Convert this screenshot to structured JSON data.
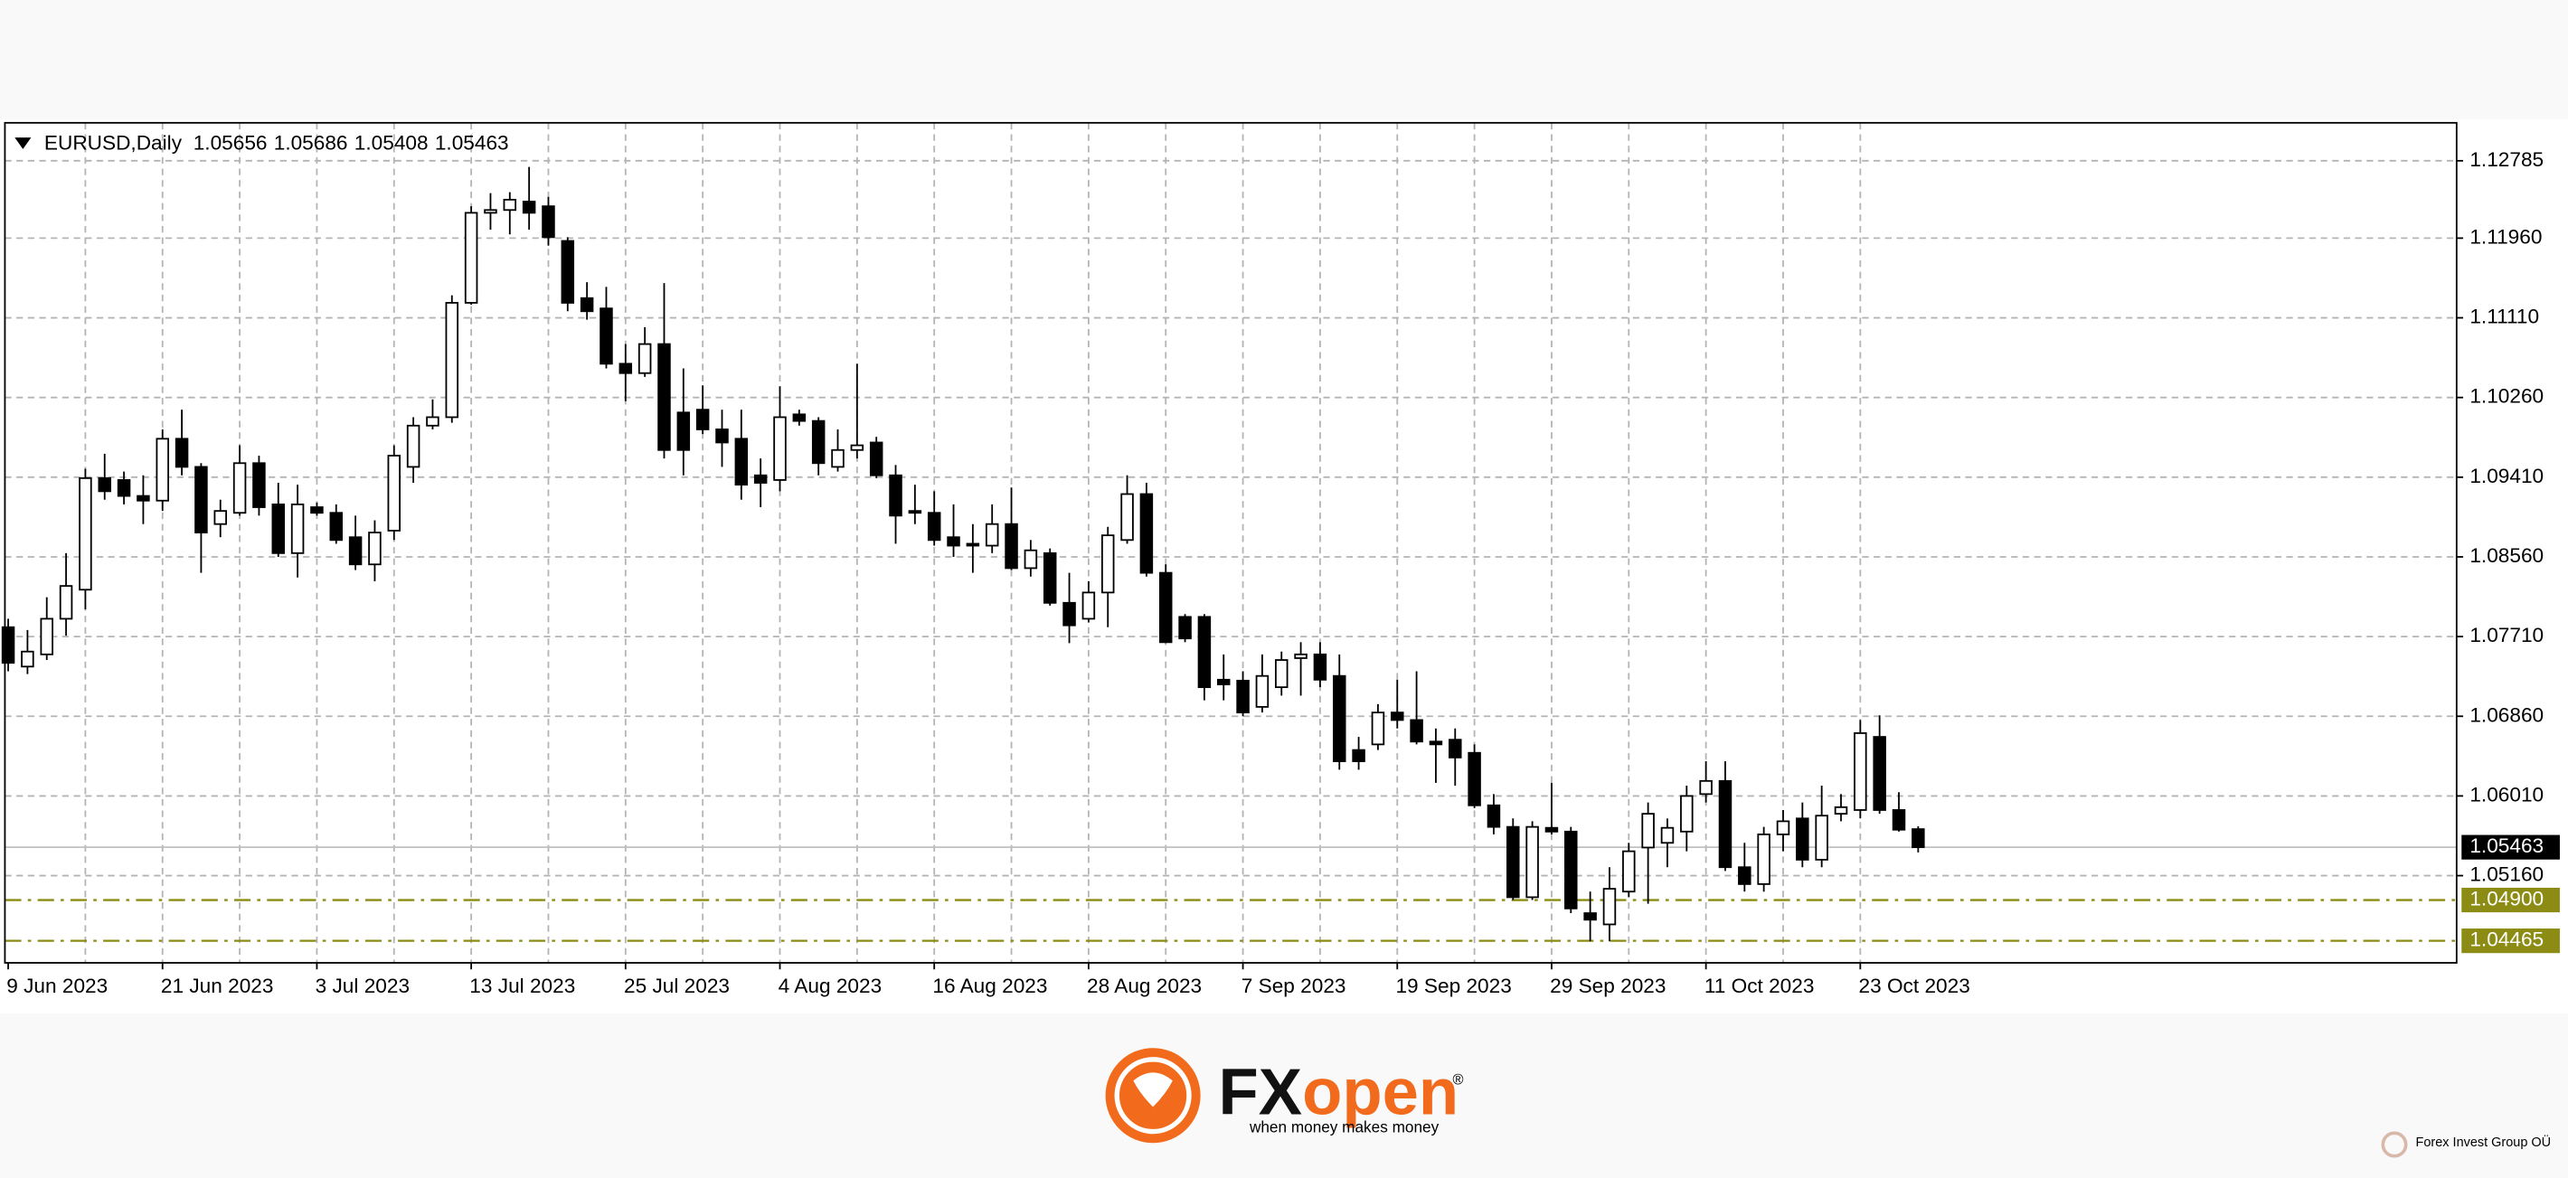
{
  "chart_data": {
    "type": "candlestick",
    "symbol": "EURUSD,Daily",
    "categories": [
      "9 Jun 2023",
      null,
      null,
      null,
      null,
      null,
      null,
      null,
      "21 Jun 2023",
      null,
      null,
      null,
      null,
      null,
      null,
      null,
      "3 Jul 2023",
      null,
      null,
      null,
      null,
      null,
      null,
      null,
      "13 Jul 2023",
      null,
      null,
      null,
      null,
      null,
      null,
      null,
      "25 Jul 2023",
      null,
      null,
      null,
      null,
      null,
      null,
      null,
      "4 Aug 2023",
      null,
      null,
      null,
      null,
      null,
      null,
      null,
      "16 Aug 2023",
      null,
      null,
      null,
      null,
      null,
      null,
      null,
      "28 Aug 2023",
      null,
      null,
      null,
      null,
      null,
      null,
      null,
      "7 Sep 2023",
      null,
      null,
      null,
      null,
      null,
      null,
      null,
      "19 Sep 2023",
      null,
      null,
      null,
      null,
      null,
      null,
      null,
      "29 Sep 2023",
      null,
      null,
      null,
      null,
      null,
      null,
      null,
      "11 Oct 2023",
      null,
      null,
      null,
      null,
      null,
      null,
      null,
      "23 Oct 2023",
      null,
      null,
      null
    ],
    "open": [
      1.0781,
      1.0739,
      1.0752,
      1.079,
      1.0821,
      1.094,
      1.0938,
      1.0921,
      1.0916,
      1.0982,
      1.0952,
      1.0891,
      1.0903,
      1.0956,
      1.0912,
      1.086,
      1.0909,
      1.0903,
      1.0877,
      1.0848,
      1.0884,
      1.0952,
      1.0996,
      1.1005,
      1.1127,
      1.1223,
      1.1226,
      1.1235,
      1.123,
      1.1193,
      1.1132,
      1.1121,
      1.1062,
      1.1052,
      1.1083,
      1.101,
      1.1013,
      1.0992,
      1.0982,
      1.0943,
      1.0938,
      1.1008,
      1.1001,
      1.0952,
      1.097,
      1.0978,
      1.0943,
      1.0905,
      1.0903,
      1.0877,
      1.087,
      1.0868,
      1.0891,
      1.0844,
      1.086,
      1.0807,
      1.079,
      1.0818,
      1.0874,
      1.0923,
      1.0839,
      1.0792,
      1.0792,
      1.0725,
      1.0724,
      1.0696,
      1.0717,
      1.0748,
      1.0752,
      1.0729,
      1.065,
      1.0656,
      1.069,
      1.0682,
      1.0659,
      1.0661,
      1.0647,
      1.0591,
      1.0568,
      1.0493,
      1.0567,
      1.0563,
      1.0476,
      1.0464,
      1.0499,
      1.0546,
      1.0551,
      1.0563,
      1.0603,
      1.0617,
      1.0525,
      1.0507,
      1.056,
      1.0577,
      1.0533,
      1.0582,
      1.0586,
      1.0664,
      1.0586,
      1.05656
    ],
    "high": [
      1.079,
      1.0778,
      1.0813,
      1.086,
      1.095,
      1.0966,
      1.0947,
      1.0943,
      1.0992,
      1.1013,
      1.0956,
      1.0917,
      1.0975,
      1.0964,
      1.0935,
      1.0933,
      1.0914,
      1.0912,
      1.09,
      1.0895,
      1.0975,
      1.1005,
      1.1024,
      1.1135,
      1.123,
      1.1244,
      1.1245,
      1.1272,
      1.124,
      1.1197,
      1.1149,
      1.1144,
      1.1083,
      1.1101,
      1.1148,
      1.1057,
      1.1039,
      1.1013,
      1.1013,
      1.0961,
      1.1038,
      1.1013,
      1.1005,
      1.0992,
      1.1062,
      1.0984,
      1.0954,
      1.0933,
      1.0926,
      1.0912,
      1.0891,
      1.0912,
      1.093,
      1.0874,
      1.0865,
      1.0839,
      1.083,
      1.0888,
      1.0943,
      1.0935,
      1.0848,
      1.0795,
      1.0795,
      1.0752,
      1.0734,
      1.0752,
      1.0755,
      1.0765,
      1.0765,
      1.0752,
      1.0664,
      1.0699,
      1.0725,
      1.0734,
      1.0673,
      1.0673,
      1.0656,
      1.0603,
      1.0577,
      1.0574,
      1.0615,
      1.0568,
      1.0499,
      1.0525,
      1.0551,
      1.0594,
      1.0577,
      1.0612,
      1.0638,
      1.0638,
      1.0551,
      1.0568,
      1.0586,
      1.0594,
      1.0612,
      1.0603,
      1.0682,
      1.0687,
      1.0605,
      1.05686
    ],
    "low": [
      1.0734,
      1.0731,
      1.0746,
      1.0772,
      1.08,
      1.0917,
      1.0912,
      1.0891,
      1.0905,
      1.0943,
      1.0839,
      1.0877,
      1.09,
      1.09,
      1.0856,
      1.0834,
      1.09,
      1.087,
      1.0842,
      1.083,
      1.0874,
      1.0935,
      1.0992,
      1.0999,
      1.1125,
      1.1205,
      1.12,
      1.1205,
      1.1188,
      1.1118,
      1.1109,
      1.1057,
      1.1022,
      1.1048,
      1.0961,
      1.0943,
      1.0987,
      1.0952,
      1.0917,
      1.0909,
      1.0926,
      1.0996,
      1.0943,
      1.0947,
      1.0961,
      1.094,
      1.087,
      1.0891,
      1.0868,
      1.0856,
      1.0839,
      1.086,
      1.0842,
      1.0835,
      1.0804,
      1.0764,
      1.0786,
      1.0781,
      1.087,
      1.0835,
      1.0764,
      1.0765,
      1.0703,
      1.0703,
      1.0686,
      1.069,
      1.0708,
      1.0708,
      1.0717,
      1.0629,
      1.0629,
      1.065,
      1.0673,
      1.0656,
      1.0615,
      1.0612,
      1.0588,
      1.056,
      1.049,
      1.049,
      1.056,
      1.0476,
      1.0446,
      1.0446,
      1.0493,
      1.0486,
      1.0525,
      1.0542,
      1.0594,
      1.0521,
      1.0499,
      1.0499,
      1.0542,
      1.0525,
      1.0525,
      1.0574,
      1.0577,
      1.0582,
      1.0563,
      1.05408
    ],
    "close": [
      1.0743,
      1.0755,
      1.079,
      1.0825,
      1.094,
      1.0926,
      1.0921,
      1.0916,
      1.0982,
      1.0952,
      1.0882,
      1.0905,
      1.0956,
      1.0909,
      1.086,
      1.0912,
      1.0903,
      1.0874,
      1.0848,
      1.0882,
      1.0964,
      1.0996,
      1.1005,
      1.1127,
      1.1223,
      1.1226,
      1.1237,
      1.1223,
      1.1197,
      1.1127,
      1.1118,
      1.1062,
      1.1052,
      1.1083,
      1.097,
      1.097,
      1.0992,
      1.0978,
      1.0933,
      1.0935,
      1.1005,
      1.1001,
      1.0956,
      1.097,
      1.0975,
      1.0943,
      1.09,
      1.0903,
      1.0874,
      1.0868,
      1.0868,
      1.0891,
      1.0844,
      1.0863,
      1.0807,
      1.0783,
      1.0818,
      1.0879,
      1.0923,
      1.0839,
      1.0765,
      1.0769,
      1.0717,
      1.072,
      1.069,
      1.0729,
      1.0746,
      1.0752,
      1.0725,
      1.0638,
      1.0638,
      1.069,
      1.0682,
      1.0659,
      1.0656,
      1.0642,
      1.0591,
      1.0568,
      1.0493,
      1.0568,
      1.0563,
      1.0481,
      1.0469,
      1.0502,
      1.0542,
      1.0582,
      1.0567,
      1.0601,
      1.0617,
      1.0525,
      1.0507,
      1.056,
      1.0574,
      1.0533,
      1.058,
      1.0589,
      1.0668,
      1.0586,
      1.0565,
      1.05463
    ],
    "up_color": "#ffffff",
    "down_color": "#000000",
    "ylim": [
      1.0423,
      1.1319
    ],
    "yticks": [
      1.12785,
      {
        "value": 1.1196,
        "label": "1.11960"
      },
      {
        "value": 1.1111,
        "label": "1.11110"
      },
      {
        "value": 1.1026,
        "label": "1.10260"
      },
      {
        "value": 1.0941,
        "label": "1.09410"
      },
      {
        "value": 1.0856,
        "label": "1.08560"
      },
      {
        "value": 1.0771,
        "label": "1.07710"
      },
      {
        "value": 1.0686,
        "label": "1.06860"
      },
      {
        "value": 1.0601,
        "label": "1.06010"
      },
      {
        "value": 1.0516,
        "label": "1.05160"
      }
    ],
    "grid": true,
    "levels": [
      {
        "value": 1.049,
        "label": "1.04900"
      },
      {
        "value": 1.04465,
        "label": "1.04465"
      }
    ],
    "level_color": "#8c8c14",
    "current_price_color": "#c0c0c0"
  },
  "brand": {
    "logo_fx": "FX",
    "logo_open": "open",
    "registered": "®",
    "tagline": "when money makes money",
    "company": "Forex Invest Group OÜ"
  }
}
